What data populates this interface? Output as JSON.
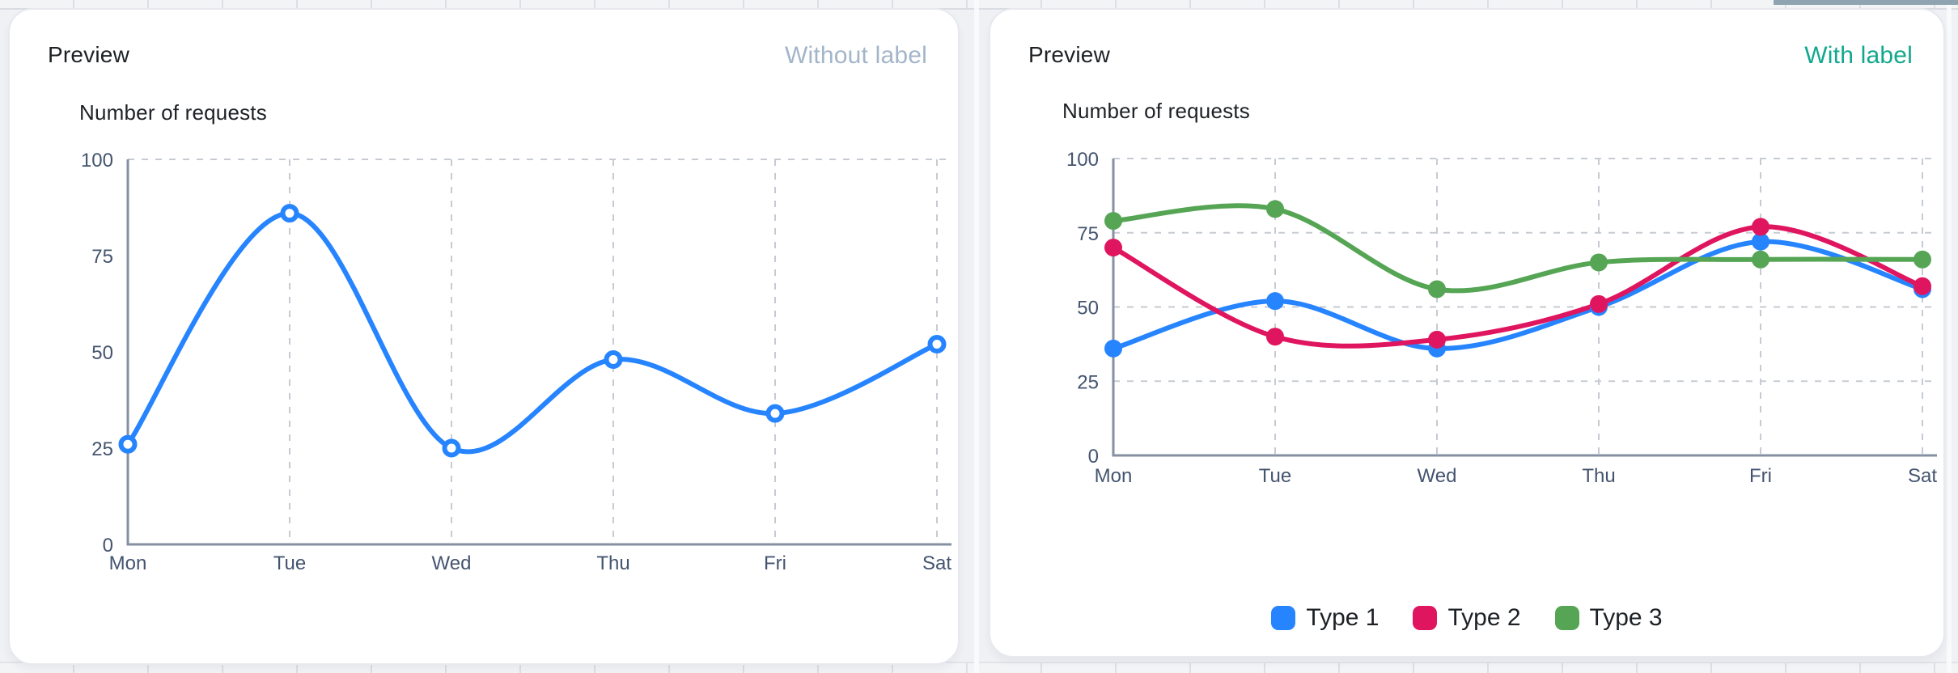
{
  "page": {
    "accent_bar_color": "#8ea4b1"
  },
  "cards": [
    {
      "header": {
        "title": "Preview",
        "variant_label": "Without label",
        "variant_color": "#a3b5c9"
      }
    },
    {
      "header": {
        "title": "Preview",
        "variant_label": "With label",
        "variant_color": "#12a88e"
      }
    }
  ],
  "chart_data": [
    {
      "type": "line",
      "title": "Number of requests",
      "categories": [
        "Mon",
        "Tue",
        "Wed",
        "Thu",
        "Fri",
        "Sat"
      ],
      "series": [
        {
          "values": [
            26,
            86,
            25,
            48,
            34,
            52
          ],
          "color": "#2684ff"
        }
      ],
      "ylim": [
        0,
        100
      ],
      "yticks": [
        0,
        25,
        50,
        75,
        100
      ],
      "grid": {
        "horizontal_at": [
          100
        ],
        "vertical": true
      },
      "marker": "open",
      "legend_position": "none"
    },
    {
      "type": "line",
      "title": "Number of requests",
      "categories": [
        "Mon",
        "Tue",
        "Wed",
        "Thu",
        "Fri",
        "Sat"
      ],
      "series": [
        {
          "name": "Type 1",
          "values": [
            36,
            52,
            36,
            50,
            72,
            56
          ],
          "color": "#2684ff"
        },
        {
          "name": "Type 2",
          "values": [
            70,
            40,
            39,
            51,
            77,
            57
          ],
          "color": "#e0155f"
        },
        {
          "name": "Type 3",
          "values": [
            79,
            83,
            56,
            65,
            66,
            66
          ],
          "color": "#55a555"
        }
      ],
      "ylim": [
        0,
        100
      ],
      "yticks": [
        0,
        25,
        50,
        75,
        100
      ],
      "grid": {
        "horizontal_at": [
          25,
          50,
          75,
          100
        ],
        "vertical": true
      },
      "marker": "filled",
      "legend_position": "bottom"
    }
  ],
  "axis_style": {
    "tick_color": "#44546f",
    "axis_color": "#8590a2",
    "grid_color": "#c6cbd3"
  }
}
